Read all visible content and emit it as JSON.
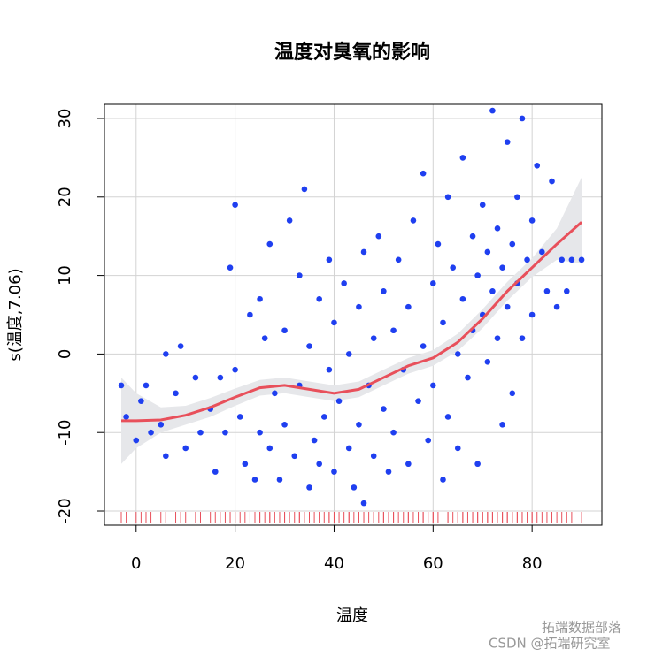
{
  "chart_data": {
    "type": "scatter",
    "title": "温度对臭氧的影响",
    "x_label": "温度",
    "y_label": "s(温度,7.06)",
    "xlim": [
      -6.4,
      94.1
    ],
    "ylim": [
      -21.8,
      31.8
    ],
    "xticks": [
      0,
      20,
      40,
      60,
      80
    ],
    "yticks": [
      -20,
      -10,
      0,
      10,
      20,
      30
    ],
    "grid": true,
    "series": [
      {
        "color": "#1f3ff0",
        "x": [
          -3,
          -2,
          0,
          1,
          2,
          3,
          5,
          6,
          6,
          8,
          9,
          10,
          12,
          13,
          15,
          16,
          17,
          18,
          19,
          20,
          20,
          21,
          22,
          23,
          24,
          25,
          25,
          26,
          27,
          27,
          28,
          29,
          30,
          30,
          31,
          32,
          33,
          33,
          34,
          35,
          35,
          36,
          37,
          37,
          38,
          39,
          39,
          40,
          40,
          41,
          42,
          43,
          43,
          44,
          45,
          45,
          46,
          46,
          47,
          48,
          48,
          49,
          50,
          50,
          51,
          52,
          52,
          53,
          54,
          55,
          55,
          56,
          57,
          58,
          58,
          59,
          60,
          60,
          61,
          62,
          62,
          63,
          63,
          64,
          65,
          65,
          66,
          66,
          67,
          68,
          68,
          69,
          69,
          70,
          70,
          71,
          71,
          72,
          72,
          73,
          73,
          74,
          74,
          75,
          75,
          76,
          76,
          77,
          77,
          78,
          78,
          79,
          80,
          80,
          81,
          82,
          83,
          84,
          85,
          86,
          87,
          88,
          90
        ],
        "values": [
          -4,
          -8,
          -11,
          -6,
          -4,
          -10,
          -9,
          0,
          -13,
          -5,
          1,
          -12,
          -3,
          -10,
          -7,
          -15,
          -3,
          -10,
          11,
          19,
          -2,
          -8,
          -14,
          5,
          -16,
          -10,
          7,
          2,
          -12,
          14,
          -5,
          -16,
          3,
          -9,
          17,
          -13,
          10,
          -4,
          21,
          -17,
          1,
          -11,
          7,
          -14,
          -8,
          12,
          -2,
          -15,
          4,
          -6,
          9,
          -12,
          0,
          -17,
          6,
          -9,
          -19,
          13,
          -4,
          2,
          -13,
          15,
          -7,
          8,
          -15,
          3,
          -10,
          12,
          -2,
          -14,
          6,
          17,
          -6,
          1,
          23,
          -11,
          9,
          -4,
          14,
          -16,
          4,
          20,
          -8,
          11,
          0,
          -12,
          7,
          25,
          -3,
          15,
          3,
          -14,
          10,
          5,
          19,
          -1,
          13,
          8,
          31,
          2,
          16,
          -9,
          11,
          6,
          27,
          -5,
          14,
          9,
          20,
          2,
          30,
          12,
          5,
          17,
          24,
          13,
          8,
          22,
          6,
          12,
          8,
          12,
          12
        ]
      }
    ],
    "smooth": {
      "color": "#e8505b",
      "band_color": "#e6e7ea",
      "x": [
        -3,
        0,
        5,
        10,
        15,
        20,
        25,
        30,
        35,
        40,
        45,
        50,
        55,
        60,
        65,
        70,
        75,
        80,
        85,
        90
      ],
      "fit": [
        -8.5,
        -8.5,
        -8.4,
        -7.8,
        -6.8,
        -5.5,
        -4.3,
        -4,
        -4.5,
        -5,
        -4.5,
        -3,
        -1.5,
        -0.5,
        1.5,
        4.5,
        8,
        11,
        14,
        16.8
      ],
      "lower": [
        -14,
        -12,
        -10,
        -9,
        -8,
        -6.6,
        -5.3,
        -5,
        -5.5,
        -6,
        -5.5,
        -4,
        -2.5,
        -1.5,
        0.4,
        3.3,
        6.8,
        9.8,
        12,
        11.5
      ],
      "upper": [
        -3,
        -5,
        -6.8,
        -6.6,
        -5.6,
        -4.4,
        -3.3,
        -3,
        -3.5,
        -4,
        -3.5,
        -2,
        -0.5,
        0.5,
        2.6,
        5.7,
        9.2,
        12.2,
        16,
        22.5
      ]
    },
    "watermark": [
      "拓端数据部落",
      "CSDN @拓端研究室"
    ]
  }
}
